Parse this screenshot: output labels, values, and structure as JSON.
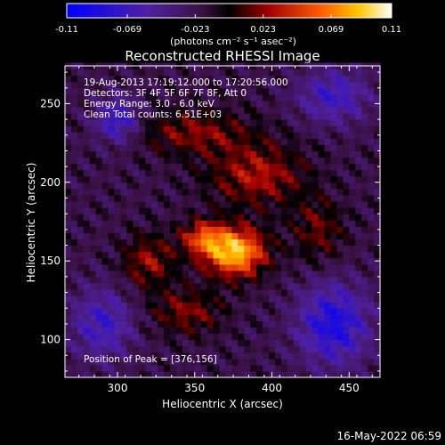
{
  "chart_data": {
    "type": "heatmap",
    "title": "Reconstructed RHESSI Image",
    "xlabel": "Heliocentric X (arcsec)",
    "ylabel": "Heliocentric Y (arcsec)",
    "xlim": [
      266,
      470
    ],
    "ylim": [
      76,
      274
    ],
    "xticks": [
      300,
      350,
      400,
      450
    ],
    "yticks": [
      100,
      150,
      200,
      250
    ],
    "colorbar": {
      "label": "(photons cm⁻² s⁻¹ asec⁻²)",
      "range": [
        -0.11,
        0.11
      ],
      "ticks": [
        "-0.11",
        "-0.069",
        "-0.023",
        "0.023",
        "0.069",
        "0.11"
      ]
    },
    "annotations": [
      "19-Aug-2013 17:19:12.000 to 17:20:56.000",
      "Detectors: 3F 4F 5F 6F 7F 8F, Att 0",
      "Energy Range: 3.0 - 6.0 keV",
      "Clean     Total counts: 6.51E+03"
    ],
    "peak_label": "Position of Peak = [376,156]",
    "peak": {
      "x": 376,
      "y": 156,
      "value": 0.11
    },
    "sources": [
      {
        "x": 376,
        "y": 156,
        "sx": 14,
        "sy": 11,
        "amp": 0.11
      },
      {
        "x": 355,
        "y": 165,
        "sx": 10,
        "sy": 8,
        "amp": 0.06
      },
      {
        "x": 390,
        "y": 205,
        "sx": 22,
        "sy": 14,
        "amp": 0.05
      },
      {
        "x": 350,
        "y": 232,
        "sx": 26,
        "sy": 10,
        "amp": 0.04
      },
      {
        "x": 320,
        "y": 150,
        "sx": 12,
        "sy": 12,
        "amp": 0.045
      },
      {
        "x": 345,
        "y": 118,
        "sx": 16,
        "sy": 10,
        "amp": 0.04
      },
      {
        "x": 430,
        "y": 170,
        "sx": 12,
        "sy": 14,
        "amp": 0.035
      },
      {
        "x": 300,
        "y": 240,
        "sx": 10,
        "sy": 10,
        "amp": -0.06
      },
      {
        "x": 440,
        "y": 110,
        "sx": 16,
        "sy": 18,
        "amp": -0.07
      },
      {
        "x": 290,
        "y": 110,
        "sx": 14,
        "sy": 16,
        "amp": -0.05
      },
      {
        "x": 440,
        "y": 255,
        "sx": 16,
        "sy": 12,
        "amp": -0.05
      }
    ]
  },
  "footer_timestamp": "16-May-2022 06:59"
}
